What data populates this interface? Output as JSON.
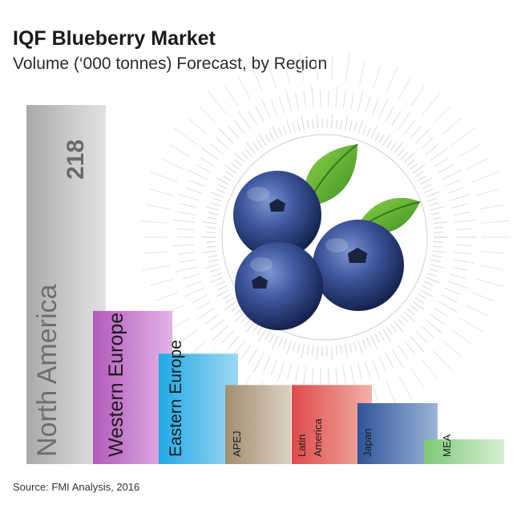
{
  "title": "IQF Blueberry Market",
  "subtitle": "Volume (‘000 tonnes) Forecast, by Region",
  "source": "Source: FMI Analysis, 2016",
  "colors": {
    "north_america": "#8f8f8f",
    "western_europe": "#c070c8",
    "eastern_europe": "#3ab8ec",
    "apej": "#b09c80",
    "latin_america": "#e45858",
    "japan": "#3b64a8",
    "mea": "#8ed488"
  },
  "chart_data": {
    "type": "bar",
    "title": "IQF Blueberry Market",
    "subtitle": "Volume (‘000 tonnes) Forecast, by Region",
    "categories": [
      "North America",
      "Western Europe",
      "Eastern Europe",
      "APEJ",
      "Latin America",
      "Japan",
      "MEA"
    ],
    "category_labels": [
      [
        "North America"
      ],
      [
        "Western Europe"
      ],
      [
        "Eastern Europe"
      ],
      [
        "APEJ"
      ],
      [
        "Latin",
        "America"
      ],
      [
        "Japan"
      ],
      [
        "MEA"
      ]
    ],
    "values": [
      218,
      93,
      67,
      48,
      48,
      37,
      15
    ],
    "value_labels": [
      "218",
      "",
      "",
      "",
      "",
      "",
      ""
    ],
    "legend": "none",
    "grid": false,
    "ylim": [
      0,
      218
    ]
  },
  "image": {
    "icon": "blueberries-with-leaves-photo"
  }
}
